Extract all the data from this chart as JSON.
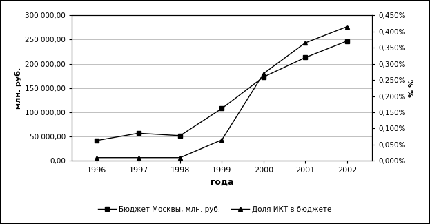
{
  "years": [
    1996,
    1997,
    1998,
    1999,
    2000,
    2001,
    2002
  ],
  "budget": [
    42000,
    57000,
    52000,
    108000,
    173000,
    213000,
    247000
  ],
  "ikt_share": [
    0.0001,
    0.0001,
    0.0001,
    0.00065,
    0.0027,
    0.00365,
    0.00415
  ],
  "ylabel_left": "млн. руб.",
  "ylabel_right": "% %",
  "xlabel": "года",
  "legend1": "Бюджет Москвы, млн. руб.",
  "legend2": "Доля ИКТ в бюджете",
  "ylim_left": [
    0,
    300000
  ],
  "ylim_right": [
    0,
    0.0045
  ],
  "yticks_left": [
    0,
    50000,
    100000,
    150000,
    200000,
    250000,
    300000
  ],
  "yticks_right": [
    0.0,
    0.0005,
    0.001,
    0.0015,
    0.002,
    0.0025,
    0.003,
    0.0035,
    0.004,
    0.0045
  ],
  "background_color": "#ffffff",
  "grid_color": "#c0c0c0",
  "line_color": "#000000",
  "border_color": "#000000",
  "figsize": [
    6.23,
    3.25
  ],
  "dpi": 100
}
